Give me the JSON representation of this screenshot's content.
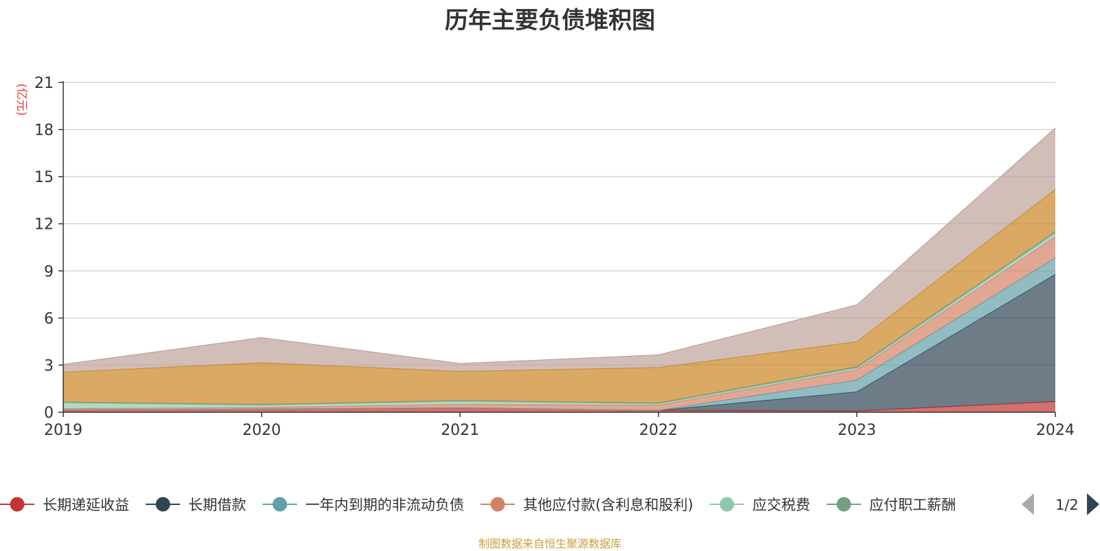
{
  "page": {
    "title": "历年主要负债堆积图",
    "source_note": "制图数据来自恒生聚源数据库",
    "source_color": "#c8a03c"
  },
  "chart_data": {
    "type": "area",
    "stacked": true,
    "title": "历年主要负债堆积图",
    "ylabel": "(亿元)",
    "ylabel_color": "#e8393f",
    "x": [
      "2019",
      "2020",
      "2021",
      "2022",
      "2023",
      "2024"
    ],
    "ylim": [
      0,
      21
    ],
    "yticks": [
      0,
      3,
      6,
      9,
      12,
      15,
      18,
      21
    ],
    "grid": true,
    "legend_position": "bottom",
    "legend_page": "1/2",
    "series": [
      {
        "name": "长期递延收益",
        "color": "#c23531",
        "values": [
          0.15,
          0.2,
          0.28,
          0.12,
          0.08,
          0.68
        ]
      },
      {
        "name": "长期借款",
        "color": "#2f4554",
        "values": [
          0,
          0,
          0,
          0,
          1.22,
          8.1
        ]
      },
      {
        "name": "一年内到期的非流动负债",
        "color": "#61a0a8",
        "values": [
          0,
          0,
          0,
          0,
          0.75,
          1.05
        ]
      },
      {
        "name": "其他应付款(含利息和股利)",
        "color": "#d48265",
        "values": [
          0.08,
          0.1,
          0.22,
          0.32,
          0.65,
          1.35
        ]
      },
      {
        "name": "应交税费",
        "color": "#91c7ae",
        "values": [
          0.37,
          0.15,
          0.2,
          0.1,
          0.12,
          0.22
        ]
      },
      {
        "name": "应付职工薪酬",
        "color": "#749f83",
        "values": [
          0.05,
          0.05,
          0.05,
          0.05,
          0.07,
          0.1
        ]
      },
      {
        "name": "",
        "color": "#ca8622",
        "values": [
          1.9,
          2.65,
          1.85,
          2.26,
          1.6,
          2.7
        ]
      },
      {
        "name": "",
        "color": "#bda29a",
        "values": [
          0.5,
          1.6,
          0.5,
          0.8,
          2.35,
          3.9
        ]
      }
    ]
  }
}
